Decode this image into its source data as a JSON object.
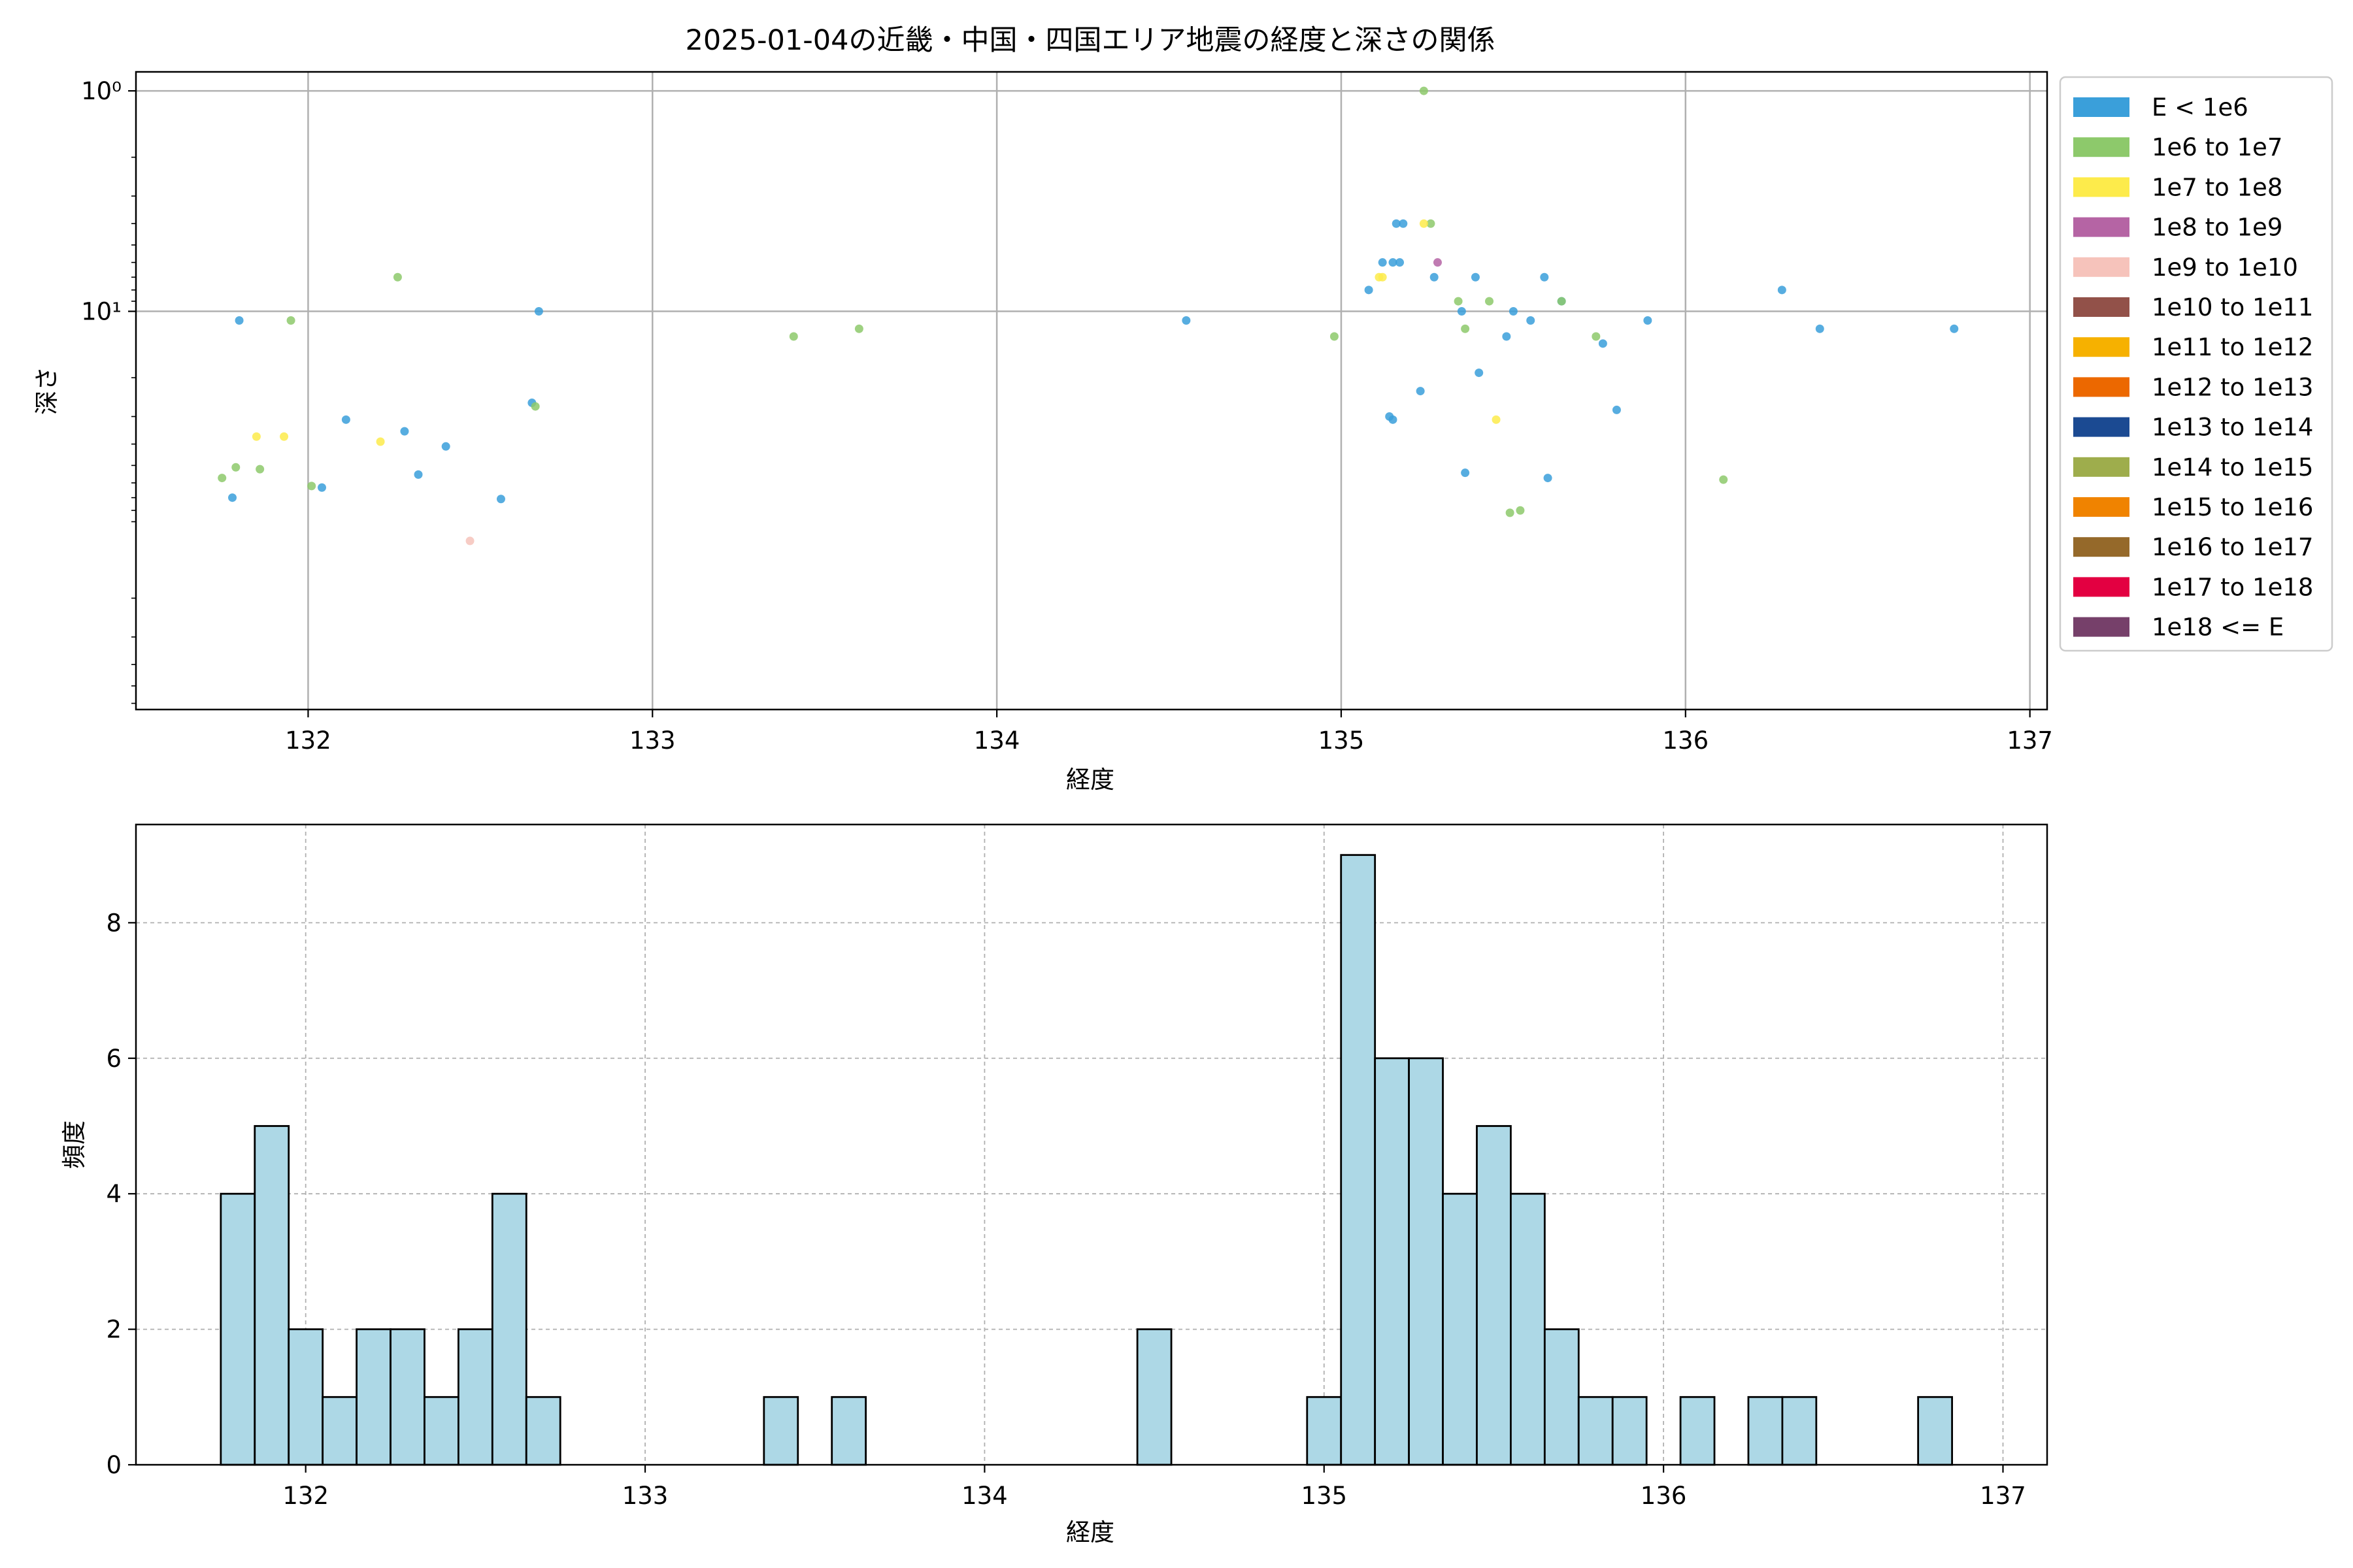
{
  "figure_title": "2025-01-04の近畿・中国・四国エリア地震の経度と深さの関係",
  "colors": {
    "grid": "#b0b0b0",
    "hist_fill": "#add8e6",
    "hist_edge": "#000000",
    "axes_edge": "#000000"
  },
  "chart_data": [
    {
      "type": "scatter",
      "title": "2025-01-04の近畿・中国・四国エリア地震の経度と深さの関係",
      "xlabel": "経度",
      "ylabel": "深さ",
      "xlim": [
        131.5,
        137.05
      ],
      "ylim": [
        0.82,
        640
      ],
      "yscale": "log",
      "y_inverted": true,
      "x_ticks": [
        132,
        133,
        134,
        135,
        136,
        137
      ],
      "y_ticks": [
        1,
        10
      ],
      "y_tick_labels": [
        "10⁰",
        "10¹"
      ],
      "grid": true,
      "legend_position": "outside-right",
      "legend": [
        {
          "label": "E < 1e6",
          "color": "#3a9fda"
        },
        {
          "label": "1e6 to 1e7",
          "color": "#8dc96b"
        },
        {
          "label": "1e7 to 1e8",
          "color": "#fdeb4b"
        },
        {
          "label": "1e8 to 1e9",
          "color": "#b564a4"
        },
        {
          "label": "1e9 to 1e10",
          "color": "#f6c3bb"
        },
        {
          "label": "1e10 to 1e11",
          "color": "#925149"
        },
        {
          "label": "1e11 to 1e12",
          "color": "#f6b100"
        },
        {
          "label": "1e12 to 1e13",
          "color": "#ec6800"
        },
        {
          "label": "1e13 to 1e14",
          "color": "#1b4a92"
        },
        {
          "label": "1e14 to 1e15",
          "color": "#9ead4c"
        },
        {
          "label": "1e15 to 1e16",
          "color": "#f08300"
        },
        {
          "label": "1e16 to 1e17",
          "color": "#95692a"
        },
        {
          "label": "1e17 to 1e18",
          "color": "#e30041"
        },
        {
          "label": "1e18 <= E",
          "color": "#76406a"
        }
      ],
      "series": [
        {
          "name": "E < 1e6",
          "color": "#3a9fda",
          "points": [
            [
              131.8,
              11
            ],
            [
              131.78,
              70
            ],
            [
              132.04,
              63
            ],
            [
              132.11,
              31
            ],
            [
              132.28,
              35
            ],
            [
              132.32,
              55
            ],
            [
              132.4,
              41
            ],
            [
              132.56,
              71
            ],
            [
              132.65,
              26
            ],
            [
              132.67,
              10
            ],
            [
              134.55,
              11
            ],
            [
              135.08,
              8
            ],
            [
              135.12,
              6
            ],
            [
              135.15,
              6
            ],
            [
              135.17,
              6
            ],
            [
              135.16,
              4
            ],
            [
              135.18,
              4
            ],
            [
              135.15,
              31
            ],
            [
              135.14,
              30
            ],
            [
              135.23,
              23
            ],
            [
              135.27,
              7
            ],
            [
              135.35,
              10
            ],
            [
              135.36,
              54
            ],
            [
              135.39,
              7
            ],
            [
              135.4,
              19
            ],
            [
              135.48,
              13
            ],
            [
              135.5,
              10
            ],
            [
              135.55,
              11
            ],
            [
              135.59,
              7
            ],
            [
              135.6,
              57
            ],
            [
              135.64,
              9
            ],
            [
              135.76,
              14
            ],
            [
              135.8,
              28
            ],
            [
              135.89,
              11
            ],
            [
              136.28,
              8
            ],
            [
              136.39,
              12
            ],
            [
              136.78,
              12
            ]
          ]
        },
        {
          "name": "1e6 to 1e7",
          "color": "#8dc96b",
          "points": [
            [
              131.75,
              57
            ],
            [
              131.79,
              51
            ],
            [
              131.86,
              52
            ],
            [
              131.95,
              11
            ],
            [
              132.01,
              62
            ],
            [
              132.26,
              7
            ],
            [
              132.66,
              27
            ],
            [
              133.41,
              13
            ],
            [
              133.6,
              12
            ],
            [
              134.98,
              13
            ],
            [
              135.24,
              1
            ],
            [
              135.26,
              4
            ],
            [
              135.34,
              9
            ],
            [
              135.36,
              12
            ],
            [
              135.43,
              9
            ],
            [
              135.49,
              82
            ],
            [
              135.52,
              80
            ],
            [
              135.64,
              9
            ],
            [
              135.74,
              13
            ],
            [
              136.11,
              58
            ]
          ]
        },
        {
          "name": "1e7 to 1e8",
          "color": "#fdeb4b",
          "points": [
            [
              131.85,
              37
            ],
            [
              131.93,
              37
            ],
            [
              132.21,
              39
            ],
            [
              135.11,
              7
            ],
            [
              135.12,
              7
            ],
            [
              135.24,
              4
            ],
            [
              135.45,
              31
            ]
          ]
        },
        {
          "name": "1e8 to 1e9",
          "color": "#b564a4",
          "points": [
            [
              135.28,
              6
            ]
          ]
        },
        {
          "name": "1e9 to 1e10",
          "color": "#f6c3bb",
          "points": [
            [
              132.47,
              110
            ]
          ]
        }
      ]
    },
    {
      "type": "bar",
      "subtype": "histogram",
      "xlabel": "経度",
      "ylabel": "頻度",
      "xlim": [
        131.5,
        137.13
      ],
      "ylim": [
        0,
        9.45
      ],
      "x_ticks": [
        132,
        133,
        134,
        135,
        136,
        137
      ],
      "y_ticks": [
        0,
        2,
        4,
        6,
        8
      ],
      "grid": true,
      "bin_start": 131.75,
      "bin_width": 0.1,
      "counts": [
        4,
        5,
        2,
        1,
        2,
        2,
        1,
        2,
        4,
        1,
        0,
        0,
        0,
        0,
        0,
        0,
        1,
        0,
        1,
        0,
        0,
        0,
        0,
        0,
        0,
        0,
        0,
        2,
        0,
        0,
        0,
        0,
        1,
        9,
        6,
        6,
        4,
        5,
        4,
        2,
        1,
        1,
        0,
        1,
        0,
        1,
        1,
        0,
        0,
        0,
        1
      ]
    }
  ]
}
